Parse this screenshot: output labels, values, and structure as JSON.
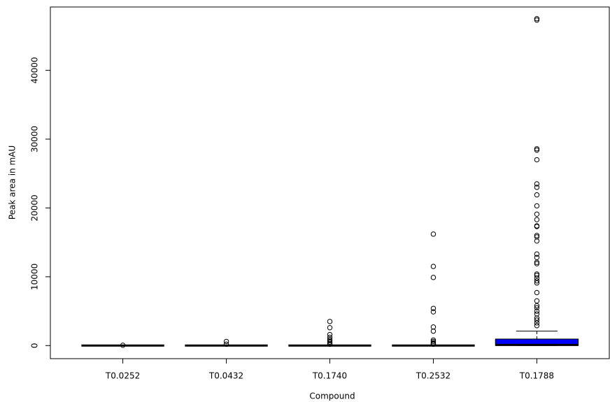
{
  "chart_data": {
    "type": "box",
    "x_label": "Compound",
    "y_label": "Peak area in mAU",
    "categories": [
      "T0.0252",
      "T0.0432",
      "T0.1740",
      "T0.2532",
      "T0.1788"
    ],
    "boxes": [
      {
        "min": 0,
        "q1": 0,
        "median": 0,
        "q3": 0,
        "max": 0,
        "fill": "#ffffff",
        "outliers": [
          50
        ]
      },
      {
        "min": 0,
        "q1": 0,
        "median": 0,
        "q3": 0,
        "max": 0,
        "fill": "#ffffff",
        "outliers": [
          600,
          200
        ]
      },
      {
        "min": 0,
        "q1": 0,
        "median": 0,
        "q3": 0,
        "max": 0,
        "fill": "#ffffff",
        "outliers": [
          3500,
          2600,
          1600,
          1200,
          900,
          700,
          500,
          300,
          200
        ]
      },
      {
        "min": 0,
        "q1": 0,
        "median": 0,
        "q3": 0,
        "max": 0,
        "fill": "#ffffff",
        "outliers": [
          16200,
          11500,
          9900,
          5400,
          4900,
          2700,
          2100,
          800,
          600,
          400,
          300,
          200
        ]
      },
      {
        "min": 0,
        "q1": 20,
        "median": 100,
        "q3": 950,
        "max": 2100,
        "fill": "#0000ff",
        "outliers": [
          47500,
          47300,
          28600,
          28400,
          27000,
          23500,
          23000,
          21900,
          20300,
          19100,
          18300,
          17400,
          17300,
          16000,
          15800,
          15200,
          13300,
          12800,
          12100,
          11900,
          10400,
          10200,
          9800,
          9400,
          9100,
          7700,
          6500,
          5800,
          5500,
          5000,
          4600,
          4000,
          3700,
          3300,
          2900
        ]
      }
    ],
    "ylim": [
      -1900,
      49200
    ],
    "yticks": [
      0,
      10000,
      20000,
      30000,
      40000
    ]
  }
}
